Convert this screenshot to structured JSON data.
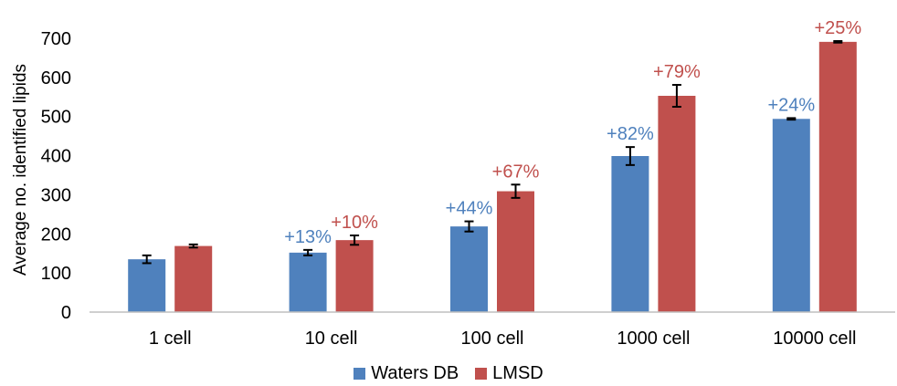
{
  "chart_data": {
    "type": "bar",
    "title": "",
    "xlabel": "",
    "ylabel": "Average no. identified lipids",
    "ylim": [
      0,
      700
    ],
    "yticks": [
      0,
      100,
      200,
      300,
      400,
      500,
      600,
      700
    ],
    "categories": [
      "1 cell",
      "10 cell",
      "100 cell",
      "1000 cell",
      "10000 cell"
    ],
    "series": [
      {
        "name": "Waters DB",
        "color": "#4f81bd",
        "label_color": "#4f81bd",
        "values": [
          135,
          152,
          219,
          399,
          494
        ],
        "errors": [
          10,
          7,
          13,
          23,
          2
        ],
        "labels": [
          "",
          "+13%",
          "+44%",
          "+82%",
          "+24%"
        ]
      },
      {
        "name": "LMSD",
        "color": "#c0504d",
        "label_color": "#c0504d",
        "values": [
          169,
          184,
          309,
          553,
          691
        ],
        "errors": [
          4,
          12,
          17,
          28,
          2
        ],
        "labels": [
          "",
          "+10%",
          "+67%",
          "+79%",
          "+25%"
        ]
      }
    ],
    "grid": false,
    "legend_position": "bottom"
  }
}
